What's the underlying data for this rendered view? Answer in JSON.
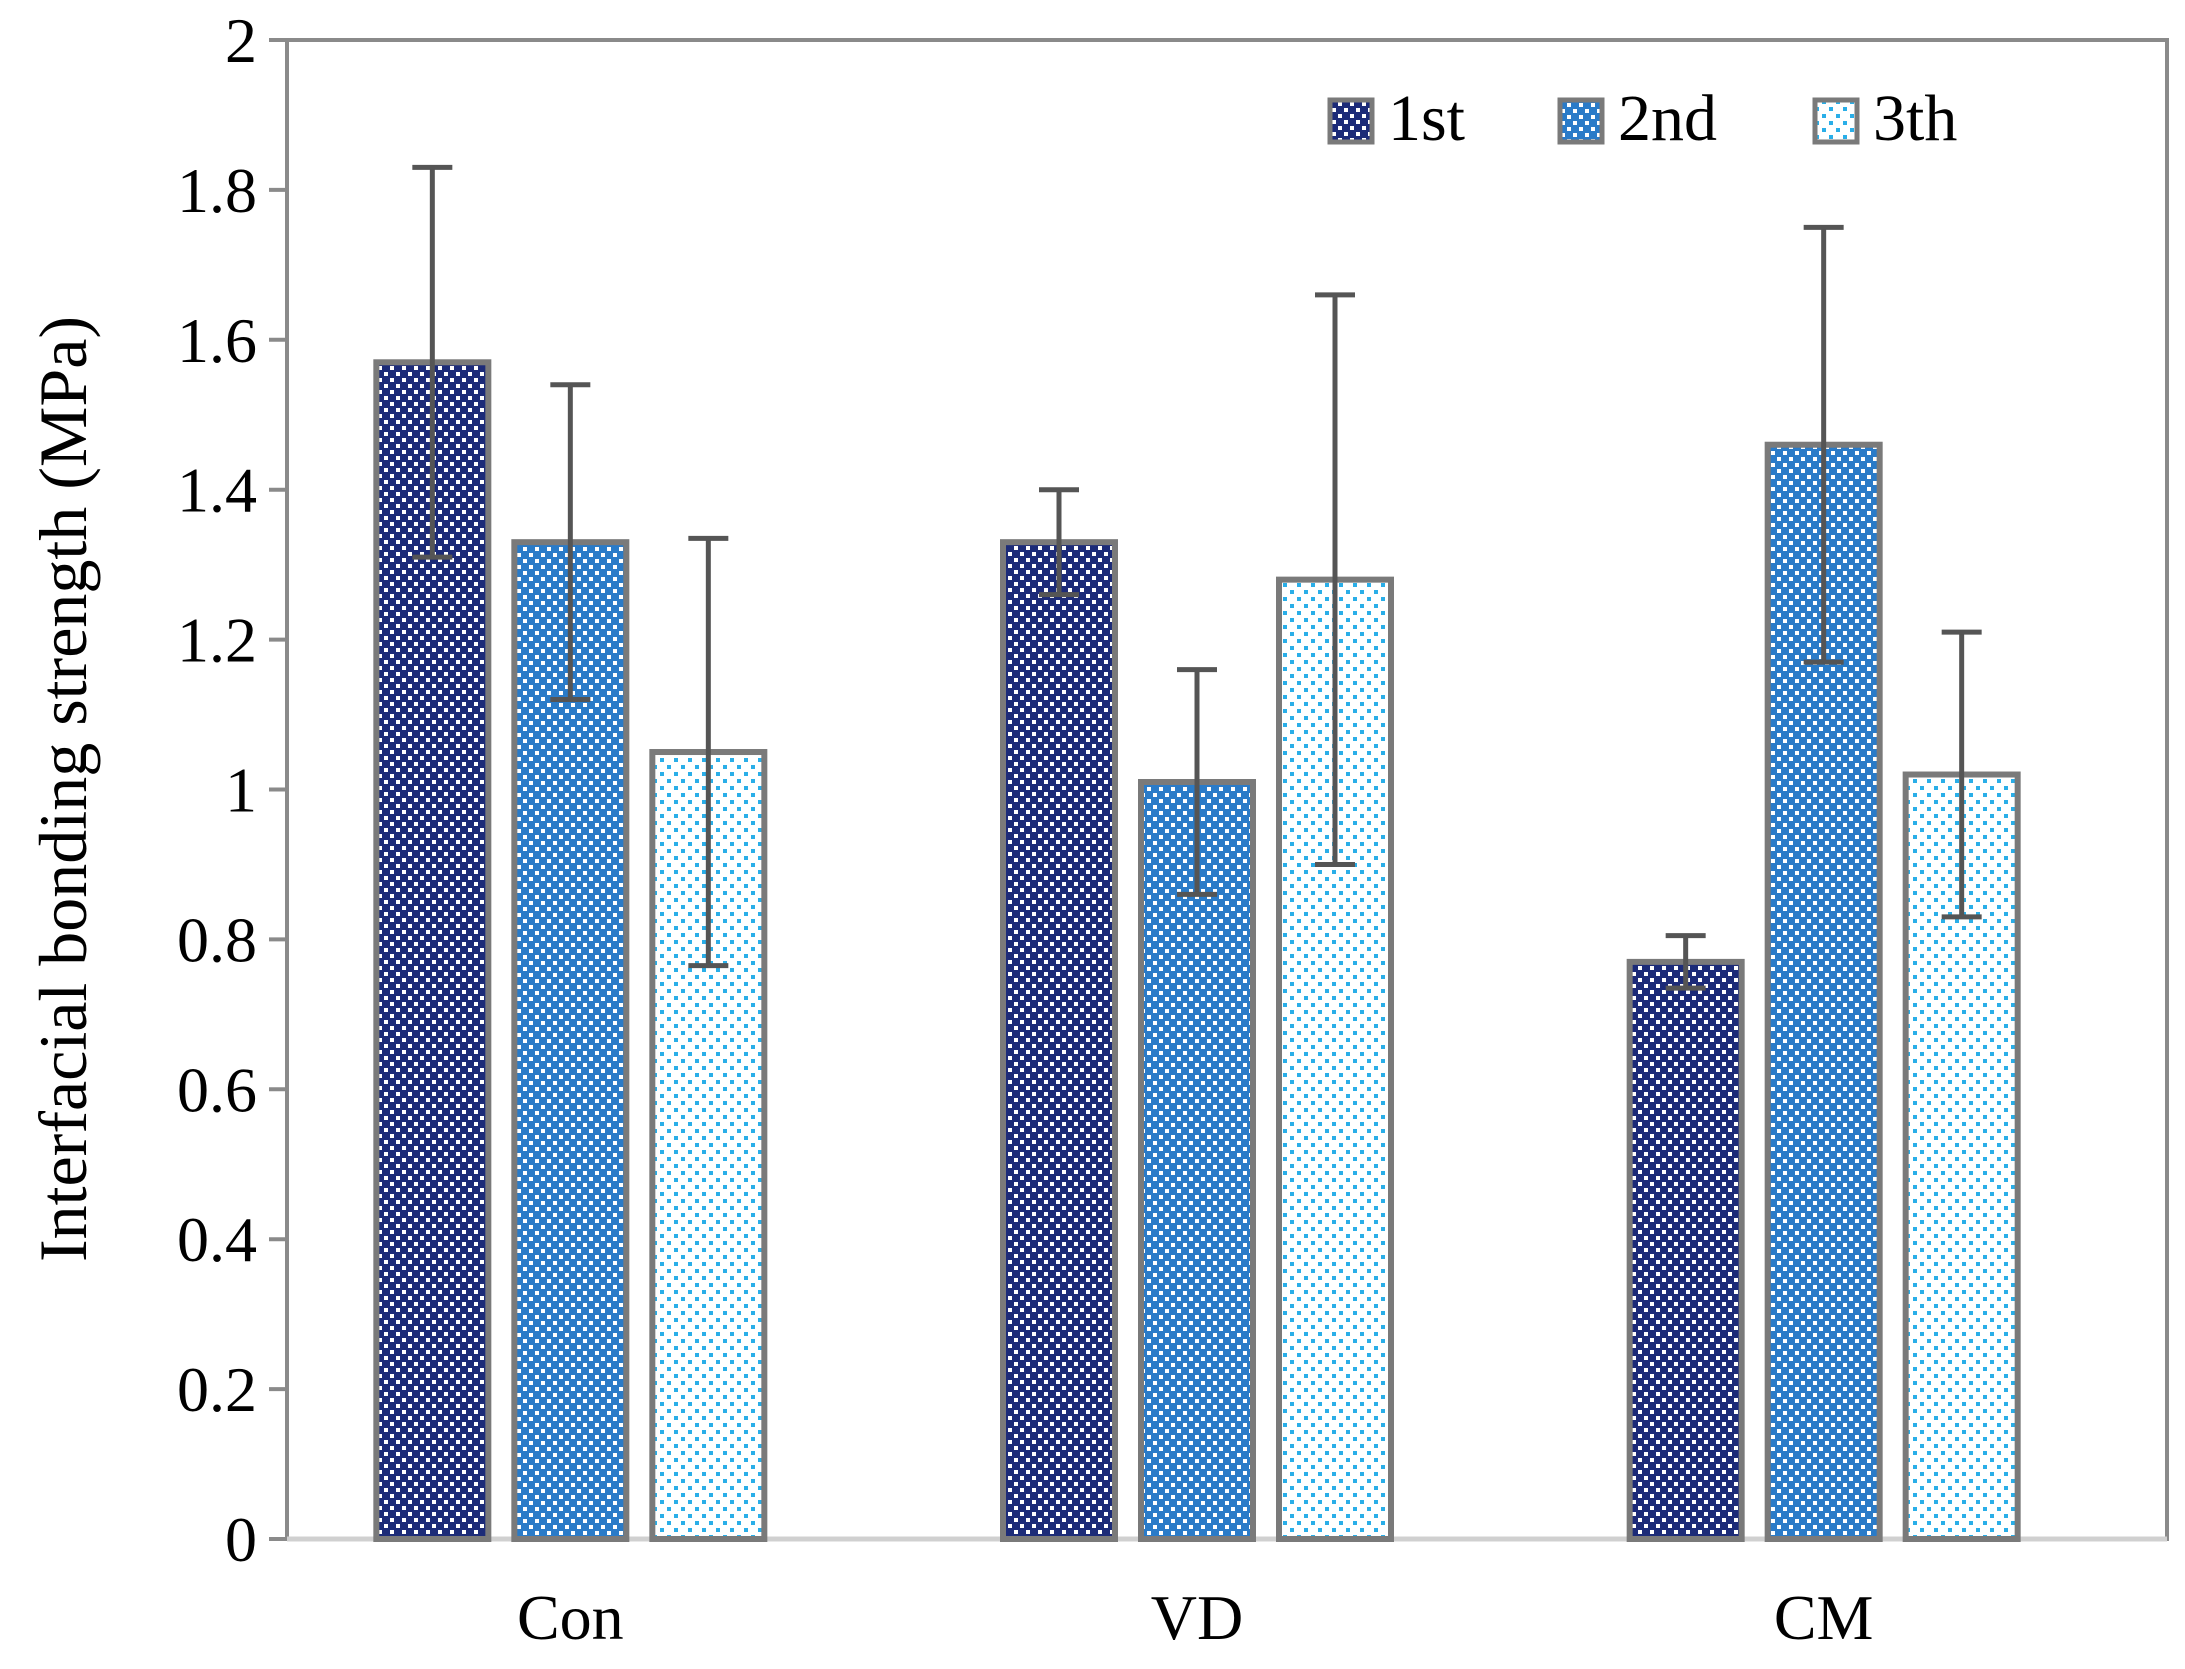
{
  "chart_data": {
    "type": "bar",
    "title": "",
    "xlabel": "",
    "ylabel": "Interfacial bonding strength (MPa)",
    "ylim": [
      0,
      2
    ],
    "yticks": [
      "0",
      "0.2",
      "0.4",
      "0.6",
      "0.8",
      "1",
      "1.2",
      "1.4",
      "1.6",
      "1.8",
      "2"
    ],
    "categories": [
      "Con",
      "VD",
      "CM"
    ],
    "grid": false,
    "legend_position": "top-right",
    "series": [
      {
        "name": "1st",
        "values": [
          1.57,
          1.33,
          0.77
        ],
        "errors": [
          0.26,
          0.07,
          0.035
        ],
        "color": "#1c2b78"
      },
      {
        "name": "2nd",
        "values": [
          1.33,
          1.01,
          1.46
        ],
        "errors": [
          0.21,
          0.15,
          0.29
        ],
        "color": "#2a7bc8"
      },
      {
        "name": "3th",
        "values": [
          1.05,
          1.28,
          1.02
        ],
        "errors": [
          0.285,
          0.38,
          0.19
        ],
        "color": "#2aaee8"
      }
    ],
    "error_bar_color": "#555555",
    "bar_border_color": "#7a7a7a",
    "axis_color": "#8a8a8a"
  }
}
